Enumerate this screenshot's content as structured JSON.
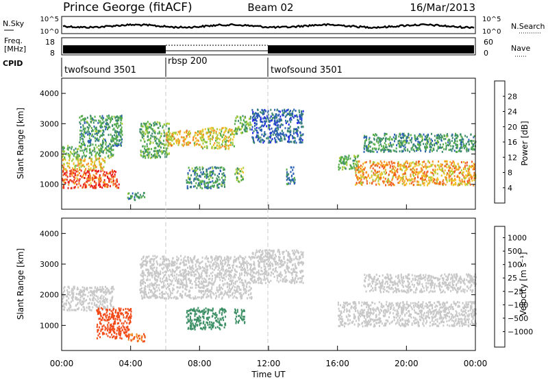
{
  "header": {
    "station": "Prince George (fitACF)",
    "beam": "Beam 02",
    "date": "16/Mar/2013"
  },
  "noise_panel": {
    "left_label": "N.Sky",
    "left_ticks": [
      "10^5",
      "10^0"
    ],
    "right_label": "N.Search",
    "right_ticks": [
      "10^5",
      "10^0"
    ]
  },
  "freq_panel": {
    "left_label_line1": "Freq.",
    "left_label_line2": "[MHz]",
    "left_ticks": [
      "18",
      "8"
    ],
    "right_label": "Nave",
    "right_ticks": [
      "60",
      "0"
    ]
  },
  "cpid_panel": {
    "label": "CPID",
    "segments": [
      {
        "name": "twofsound 3501",
        "start_hour": 0,
        "end_hour": 6
      },
      {
        "name": "rbsp 200",
        "start_hour": 6,
        "end_hour": 12
      },
      {
        "name": "twofsound 3501",
        "start_hour": 12,
        "end_hour": 24
      }
    ]
  },
  "time_axis": {
    "label": "Time UT",
    "ticks": [
      "00:00",
      "04:00",
      "08:00",
      "12:00",
      "16:00",
      "20:00",
      "00:00"
    ]
  },
  "colors": {
    "power_scale": [
      "#1c22e6",
      "#2a5fb4",
      "#3c8a6e",
      "#55ad4a",
      "#a8cc3a",
      "#f0c22a",
      "#f79022",
      "#f05a1e",
      "#e81e1e"
    ],
    "velocity_scale": [
      "#e81515",
      "#f24a18",
      "#f78a1e",
      "#f5b030",
      "#c8c8c8",
      "#c8c8c8",
      "#7cc844",
      "#3c8f64",
      "#2a5da8",
      "#1c2ab0"
    ]
  },
  "chart_data": [
    {
      "type": "heatmap",
      "name": "power",
      "xlabel": "",
      "ylabel": "Slant Range [km]",
      "x_unit": "hour UT",
      "xlim": [
        0,
        24
      ],
      "ylim": [
        180,
        4500
      ],
      "yticks": [
        "1000",
        "2000",
        "3000",
        "4000"
      ],
      "colorbar": {
        "label": "Power [dB]",
        "ticks": [
          "4",
          "8",
          "12",
          "16",
          "20",
          "24",
          "28"
        ],
        "range": [
          0,
          32
        ]
      },
      "regions": [
        {
          "x0": 0.0,
          "x1": 3.3,
          "y0": 900,
          "y1": 1500,
          "value": 28
        },
        {
          "x0": 0.0,
          "x1": 2.5,
          "y0": 1500,
          "y1": 1900,
          "value": 20
        },
        {
          "x0": 0.0,
          "x1": 3.0,
          "y0": 1900,
          "y1": 2300,
          "value": 12
        },
        {
          "x0": 1.0,
          "x1": 3.5,
          "y0": 2300,
          "y1": 3300,
          "value": 10
        },
        {
          "x0": 3.8,
          "x1": 4.8,
          "y0": 500,
          "y1": 750,
          "value": 10
        },
        {
          "x0": 4.5,
          "x1": 6.2,
          "y0": 1900,
          "y1": 3100,
          "value": 12
        },
        {
          "x0": 6.0,
          "x1": 8.0,
          "y0": 2300,
          "y1": 2800,
          "value": 20
        },
        {
          "x0": 8.0,
          "x1": 10.0,
          "y0": 2200,
          "y1": 2900,
          "value": 18
        },
        {
          "x0": 10.0,
          "x1": 11.0,
          "y0": 2700,
          "y1": 3300,
          "value": 12
        },
        {
          "x0": 7.2,
          "x1": 9.5,
          "y0": 900,
          "y1": 1600,
          "value": 10
        },
        {
          "x0": 10.0,
          "x1": 10.5,
          "y0": 1100,
          "y1": 1600,
          "value": 14
        },
        {
          "x0": 11.0,
          "x1": 14.0,
          "y0": 2400,
          "y1": 3500,
          "value": 6
        },
        {
          "x0": 13.0,
          "x1": 13.5,
          "y0": 1000,
          "y1": 1600,
          "value": 8
        },
        {
          "x0": 16.0,
          "x1": 17.2,
          "y0": 1500,
          "y1": 2000,
          "value": 12
        },
        {
          "x0": 17.0,
          "x1": 24.0,
          "y0": 1000,
          "y1": 1800,
          "value": 22
        },
        {
          "x0": 17.5,
          "x1": 24.0,
          "y0": 2100,
          "y1": 2700,
          "value": 10
        }
      ]
    },
    {
      "type": "heatmap",
      "name": "velocity",
      "xlabel": "Time UT",
      "ylabel": "Slant Range [km]",
      "x_unit": "hour UT",
      "xlim": [
        0,
        24
      ],
      "ylim": [
        180,
        4500
      ],
      "yticks": [
        "1000",
        "2000",
        "3000",
        "4000"
      ],
      "colorbar": {
        "label": "Velocity [m s⁻¹]",
        "ticks": [
          "1000",
          "500",
          "100",
          "25",
          "−25",
          "−100",
          "−500",
          "−1000"
        ]
      },
      "regions": [
        {
          "x0": 0.0,
          "x1": 3.0,
          "y0": 1500,
          "y1": 2300,
          "value": 0
        },
        {
          "x0": 2.0,
          "x1": 4.0,
          "y0": 600,
          "y1": 1600,
          "value": -600
        },
        {
          "x0": 3.8,
          "x1": 4.8,
          "y0": 500,
          "y1": 750,
          "value": -300
        },
        {
          "x0": 4.5,
          "x1": 11.0,
          "y0": 1900,
          "y1": 3300,
          "value": 0
        },
        {
          "x0": 7.2,
          "x1": 9.5,
          "y0": 900,
          "y1": 1600,
          "value": 150
        },
        {
          "x0": 10.0,
          "x1": 10.6,
          "y0": 1100,
          "y1": 1600,
          "value": 200
        },
        {
          "x0": 11.0,
          "x1": 14.0,
          "y0": 2400,
          "y1": 3500,
          "value": 0
        },
        {
          "x0": 16.0,
          "x1": 24.0,
          "y0": 1000,
          "y1": 1800,
          "value": 0
        },
        {
          "x0": 17.5,
          "x1": 24.0,
          "y0": 2100,
          "y1": 2700,
          "value": 0
        }
      ]
    }
  ]
}
